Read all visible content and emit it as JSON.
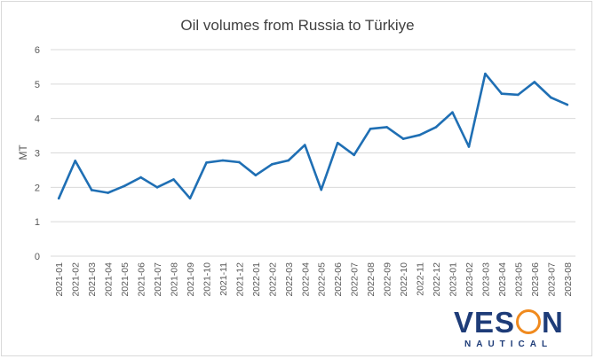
{
  "chart_data": {
    "type": "line",
    "title": "Oil volumes from Russia to Türkiye",
    "xlabel": "",
    "ylabel": "MT",
    "ylim": [
      0,
      6
    ],
    "yticks": [
      "0",
      "1",
      "2",
      "3",
      "4",
      "5",
      "6"
    ],
    "grid": true,
    "legend": "none",
    "color": "#1f6fb4",
    "categories": [
      "2021-01",
      "2021-02",
      "2021-03",
      "2021-04",
      "2021-05",
      "2021-06",
      "2021-07",
      "2021-08",
      "2021-09",
      "2021-10",
      "2021-11",
      "2021-12",
      "2022-01",
      "2022-02",
      "2022-03",
      "2022-04",
      "2022-05",
      "2022-06",
      "2022-07",
      "2022-08",
      "2022-09",
      "2022-10",
      "2022-11",
      "2022-12",
      "2023-01",
      "2023-02",
      "2023-03",
      "2023-04",
      "2023-05",
      "2023-06",
      "2023-07",
      "2023-08"
    ],
    "series": [
      {
        "values": [
          1.68,
          2.77,
          1.92,
          1.84,
          2.04,
          2.29,
          2.0,
          2.23,
          1.68,
          2.72,
          2.78,
          2.73,
          2.35,
          2.67,
          2.78,
          3.23,
          1.93,
          3.29,
          2.94,
          3.7,
          3.75,
          3.41,
          3.52,
          3.75,
          4.18,
          3.18,
          5.3,
          4.72,
          4.69,
          5.06,
          4.61,
          4.4
        ]
      }
    ]
  },
  "logo": {
    "word_left": "VES",
    "word_right": "N",
    "subtitle": "NAUTICAL"
  }
}
